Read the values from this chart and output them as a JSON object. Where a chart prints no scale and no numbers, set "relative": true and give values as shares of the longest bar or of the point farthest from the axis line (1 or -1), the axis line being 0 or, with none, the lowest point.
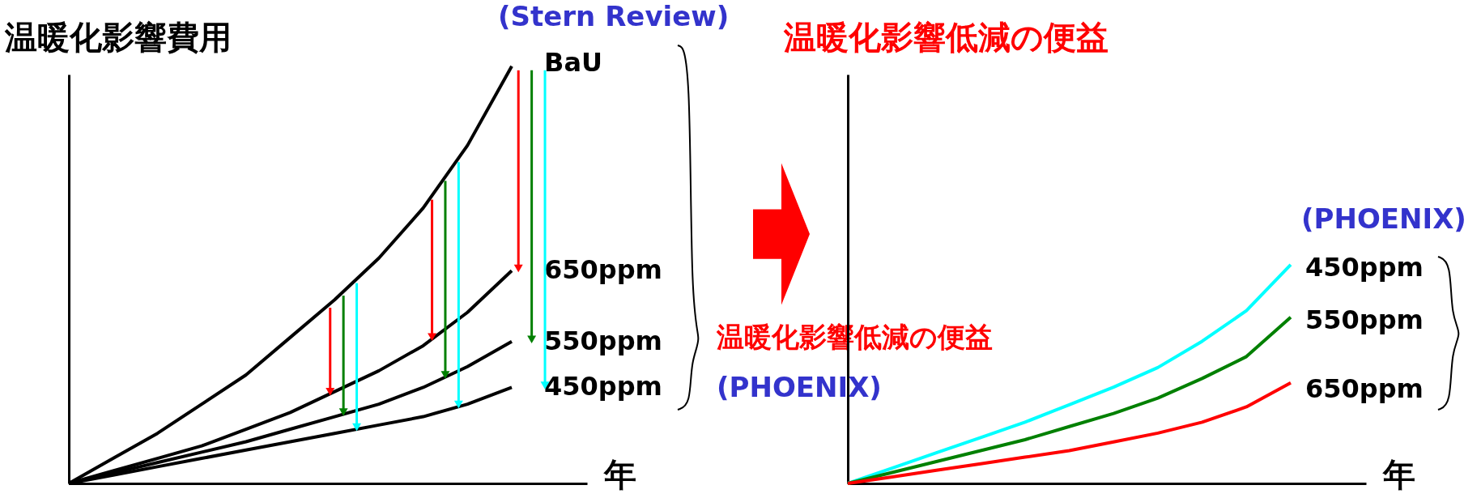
{
  "chart_data": [
    {
      "type": "line",
      "relative": true,
      "ylabel": "温暖化影響費用",
      "xlabel": "年",
      "categories": [
        null,
        null,
        null,
        null,
        null,
        null,
        null,
        null,
        null,
        null,
        null
      ],
      "series": [
        {
          "name": "BaU",
          "color": "#000000",
          "values": [
            0,
            0.06,
            0.12,
            0.19,
            0.26,
            0.35,
            0.44,
            0.54,
            0.66,
            0.81,
            1
          ]
        },
        {
          "name": "650ppm",
          "color": "#000000",
          "values": [
            0,
            0.03,
            0.06,
            0.09,
            0.13,
            0.17,
            0.22,
            0.27,
            0.33,
            0.41,
            0.51
          ]
        },
        {
          "name": "550ppm",
          "color": "#000000",
          "values": [
            0,
            0.025,
            0.05,
            0.075,
            0.1,
            0.13,
            0.16,
            0.19,
            0.23,
            0.28,
            0.34
          ]
        },
        {
          "name": "450ppm",
          "color": "#000000",
          "values": [
            0,
            0.02,
            0.04,
            0.06,
            0.08,
            0.1,
            0.12,
            0.14,
            0.16,
            0.19,
            0.23
          ]
        }
      ],
      "annotations": [
        "(Stern Review)",
        "温暖化影響低減の便益",
        "(PHOENIX)"
      ]
    },
    {
      "type": "line",
      "relative": true,
      "ylabel": "温暖化影響低減の便益",
      "xlabel": "年",
      "categories": [
        null,
        null,
        null,
        null,
        null,
        null,
        null,
        null,
        null,
        null,
        null
      ],
      "series": [
        {
          "name": "450ppm",
          "color": "#00ffff",
          "values": [
            0,
            0.07,
            0.14,
            0.21,
            0.28,
            0.36,
            0.44,
            0.53,
            0.65,
            0.79,
            1
          ]
        },
        {
          "name": "550ppm",
          "color": "#008000",
          "values": [
            0,
            0.05,
            0.1,
            0.15,
            0.2,
            0.26,
            0.32,
            0.39,
            0.48,
            0.58,
            0.76
          ]
        },
        {
          "name": "650ppm",
          "color": "#ff0000",
          "values": [
            0,
            0.03,
            0.06,
            0.09,
            0.12,
            0.15,
            0.19,
            0.23,
            0.28,
            0.35,
            0.46
          ]
        }
      ],
      "annotations": [
        "(PHOENIX)"
      ]
    }
  ]
}
